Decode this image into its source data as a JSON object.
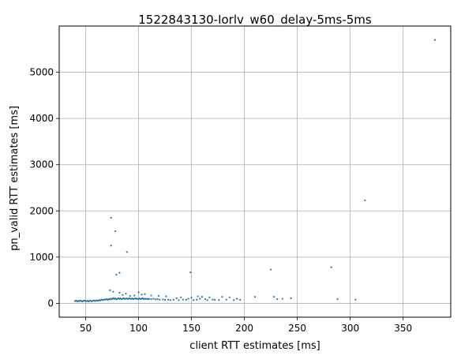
{
  "chart_data": {
    "type": "scatter",
    "title": "1522843130-Iorlv_w60_delay-5ms-5ms",
    "xlabel": "client RTT estimates [ms]",
    "ylabel": "pn_valid RTT estimates [ms]",
    "xlim": [
      25,
      395
    ],
    "ylim": [
      -300,
      6000
    ],
    "xticks": [
      50,
      100,
      150,
      200,
      250,
      300,
      350
    ],
    "yticks": [
      0,
      1000,
      2000,
      3000,
      4000,
      5000
    ],
    "grid": true,
    "marker_color": "#1f77b4",
    "points": [
      [
        380,
        5700
      ],
      [
        314,
        2230
      ],
      [
        74,
        1850
      ],
      [
        78,
        1560
      ],
      [
        74,
        1250
      ],
      [
        89,
        1110
      ],
      [
        282,
        780
      ],
      [
        225,
        730
      ],
      [
        82,
        660
      ],
      [
        79,
        620
      ],
      [
        149,
        670
      ],
      [
        73,
        280
      ],
      [
        76,
        250
      ],
      [
        82,
        230
      ],
      [
        88,
        210
      ],
      [
        100,
        240
      ],
      [
        103,
        190
      ],
      [
        106,
        200
      ],
      [
        112,
        170
      ],
      [
        119,
        160
      ],
      [
        126,
        150
      ],
      [
        140,
        130
      ],
      [
        156,
        150
      ],
      [
        160,
        140
      ],
      [
        167,
        130
      ],
      [
        179,
        140
      ],
      [
        186,
        130
      ],
      [
        210,
        140
      ],
      [
        228,
        140
      ],
      [
        236,
        100
      ],
      [
        244,
        110
      ],
      [
        288,
        90
      ],
      [
        305,
        80
      ],
      [
        136,
        110
      ],
      [
        147,
        100
      ],
      [
        150,
        120
      ],
      [
        158,
        100
      ],
      [
        163,
        90
      ],
      [
        170,
        80
      ],
      [
        193,
        100
      ],
      [
        231,
        90
      ],
      [
        85,
        180
      ],
      [
        92,
        160
      ],
      [
        96,
        170
      ],
      [
        40,
        50
      ],
      [
        41,
        60
      ],
      [
        42,
        40
      ],
      [
        43,
        55
      ],
      [
        44,
        45
      ],
      [
        45,
        60
      ],
      [
        46,
        50
      ],
      [
        47,
        40
      ],
      [
        48,
        55
      ],
      [
        49,
        60
      ],
      [
        50,
        45
      ],
      [
        51,
        50
      ],
      [
        52,
        55
      ],
      [
        53,
        40
      ],
      [
        54,
        60
      ],
      [
        55,
        50
      ],
      [
        56,
        45
      ],
      [
        57,
        55
      ],
      [
        58,
        60
      ],
      [
        59,
        50
      ],
      [
        60,
        65
      ],
      [
        61,
        55
      ],
      [
        62,
        60
      ],
      [
        63,
        70
      ],
      [
        64,
        65
      ],
      [
        65,
        80
      ],
      [
        66,
        70
      ],
      [
        67,
        75
      ],
      [
        68,
        85
      ],
      [
        69,
        80
      ],
      [
        70,
        90
      ],
      [
        71,
        75
      ],
      [
        72,
        95
      ],
      [
        73,
        85
      ],
      [
        74,
        100
      ],
      [
        75,
        90
      ],
      [
        76,
        110
      ],
      [
        77,
        95
      ],
      [
        78,
        105
      ],
      [
        79,
        85
      ],
      [
        80,
        100
      ],
      [
        81,
        110
      ],
      [
        82,
        95
      ],
      [
        83,
        105
      ],
      [
        84,
        90
      ],
      [
        85,
        100
      ],
      [
        86,
        110
      ],
      [
        87,
        95
      ],
      [
        88,
        100
      ],
      [
        89,
        105
      ],
      [
        90,
        90
      ],
      [
        91,
        110
      ],
      [
        92,
        100
      ],
      [
        93,
        95
      ],
      [
        94,
        105
      ],
      [
        95,
        90
      ],
      [
        96,
        100
      ],
      [
        97,
        110
      ],
      [
        98,
        95
      ],
      [
        99,
        100
      ],
      [
        100,
        90
      ],
      [
        101,
        105
      ],
      [
        102,
        95
      ],
      [
        103,
        100
      ],
      [
        104,
        110
      ],
      [
        105,
        90
      ],
      [
        106,
        100
      ],
      [
        107,
        95
      ],
      [
        108,
        100
      ],
      [
        109,
        90
      ],
      [
        110,
        95
      ],
      [
        112,
        90
      ],
      [
        114,
        100
      ],
      [
        116,
        85
      ],
      [
        118,
        90
      ],
      [
        120,
        80
      ],
      [
        123,
        85
      ],
      [
        125,
        75
      ],
      [
        128,
        80
      ],
      [
        130,
        70
      ],
      [
        133,
        75
      ],
      [
        138,
        70
      ],
      [
        142,
        80
      ],
      [
        145,
        75
      ],
      [
        152,
        70
      ],
      [
        155,
        80
      ],
      [
        165,
        70
      ],
      [
        172,
        75
      ],
      [
        176,
        70
      ],
      [
        183,
        80
      ],
      [
        190,
        70
      ],
      [
        196,
        75
      ]
    ]
  }
}
